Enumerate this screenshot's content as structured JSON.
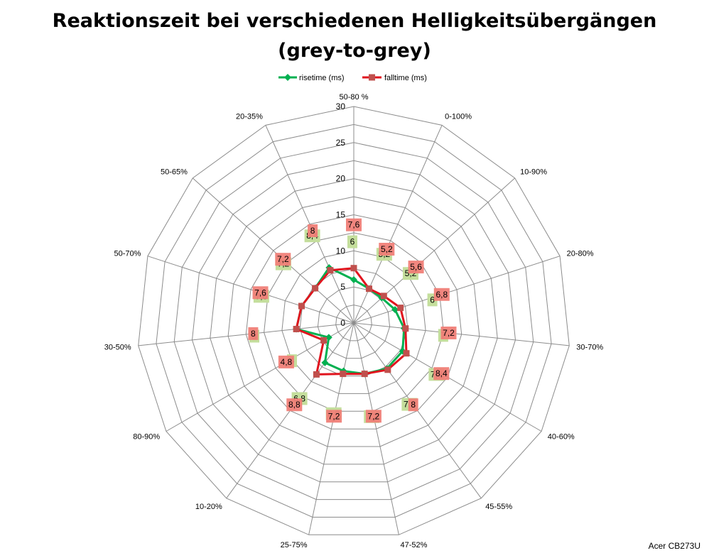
{
  "chart_data": {
    "type": "radar",
    "title": "Reaktionszeit bei verschiedenen Helligkeitsübergängen",
    "subtitle": "(grey-to-grey)",
    "categories": [
      "50-80 %",
      "0-100%",
      "10-90%",
      "20-80%",
      "30-70%",
      "40-60%",
      "45-55%",
      "47-52%",
      "25-75%",
      "10-20%",
      "80-90%",
      "30-50%",
      "50-70%",
      "50-65%",
      "20-35%"
    ],
    "series": [
      {
        "name": "risetime (ms)",
        "color": "#00B050",
        "label_bg": "#C4DE9C",
        "values": [
          6,
          5.2,
          5.2,
          6,
          7,
          7.8,
          7.8,
          7.2,
          6.8,
          6.8,
          4,
          8,
          7.6,
          7.2,
          8.4
        ],
        "labels": [
          "6",
          "5,2",
          "5,2",
          "6",
          "7",
          "7,8",
          "7,8",
          "7,2",
          "6,8",
          "6,8",
          "4",
          "8",
          "7,6",
          "7,2",
          "8,4"
        ]
      },
      {
        "name": "falltime (ms)",
        "color": "#E1141E",
        "label_bg": "#F08078",
        "values": [
          7.6,
          5.2,
          5.6,
          6.8,
          7.2,
          8.4,
          8,
          7.2,
          7.2,
          8.8,
          4.8,
          8,
          7.6,
          7.2,
          8
        ],
        "labels": [
          "7,6",
          "5,2",
          "5,6",
          "6,8",
          "7,2",
          "8,4",
          "8",
          "7,2",
          "7,2",
          "8,8",
          "4,8",
          "8",
          "7,6",
          "7,2",
          "8"
        ]
      }
    ],
    "r_ticks": [
      "0",
      "5",
      "10",
      "15",
      "20",
      "25",
      "30"
    ],
    "rlim": [
      0,
      30
    ],
    "legend_position": "top",
    "grid": true
  },
  "credit": "Acer CB273U"
}
